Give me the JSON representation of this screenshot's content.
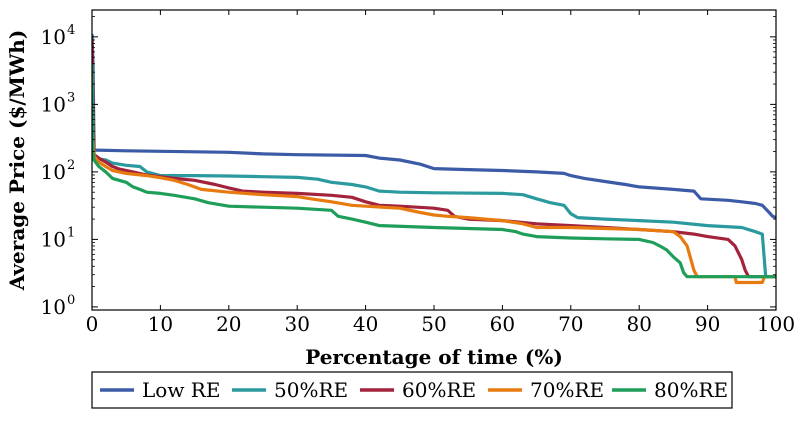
{
  "chart_data": {
    "type": "line",
    "xlabel": "Percentage of time (%)",
    "ylabel": "Average Price ($/MWh)",
    "xlim": [
      0,
      100
    ],
    "ylim": [
      0.9,
      25000
    ],
    "yscale": "log",
    "grid": false,
    "legend_position": "bottom",
    "x_ticks": [
      0,
      10,
      20,
      30,
      40,
      50,
      60,
      70,
      80,
      90,
      100
    ],
    "y_ticks": [
      {
        "value": 1,
        "mantissa": "10",
        "exponent": "0"
      },
      {
        "value": 10,
        "mantissa": "10",
        "exponent": "1"
      },
      {
        "value": 100,
        "mantissa": "10",
        "exponent": "2"
      },
      {
        "value": 1000,
        "mantissa": "10",
        "exponent": "3"
      },
      {
        "value": 10000,
        "mantissa": "10",
        "exponent": "4"
      }
    ],
    "series": [
      {
        "name": "Low RE",
        "color": "#3b5ba7",
        "points": [
          [
            0,
            11000
          ],
          [
            0.15,
            4000
          ],
          [
            0.3,
            215
          ],
          [
            0.6,
            210
          ],
          [
            5,
            205
          ],
          [
            20,
            195
          ],
          [
            25,
            185
          ],
          [
            30,
            180
          ],
          [
            40,
            175
          ],
          [
            42,
            160
          ],
          [
            45,
            150
          ],
          [
            48,
            130
          ],
          [
            50,
            112
          ],
          [
            55,
            108
          ],
          [
            60,
            105
          ],
          [
            65,
            100
          ],
          [
            69,
            95
          ],
          [
            70,
            88
          ],
          [
            72,
            80
          ],
          [
            75,
            72
          ],
          [
            78,
            65
          ],
          [
            80,
            60
          ],
          [
            85,
            55
          ],
          [
            88,
            52
          ],
          [
            89,
            40
          ],
          [
            93,
            38
          ],
          [
            95,
            36
          ],
          [
            97,
            34
          ],
          [
            98,
            32
          ],
          [
            99,
            25
          ],
          [
            99.5,
            22
          ],
          [
            100,
            21
          ]
        ]
      },
      {
        "name": "50%RE",
        "color": "#2a9a9e",
        "points": [
          [
            0,
            200
          ],
          [
            0.3,
            160
          ],
          [
            1,
            155
          ],
          [
            2,
            150
          ],
          [
            3,
            135
          ],
          [
            5,
            125
          ],
          [
            7,
            120
          ],
          [
            8,
            100
          ],
          [
            10,
            88
          ],
          [
            15,
            88
          ],
          [
            20,
            87
          ],
          [
            25,
            85
          ],
          [
            30,
            83
          ],
          [
            33,
            78
          ],
          [
            35,
            70
          ],
          [
            38,
            65
          ],
          [
            40,
            60
          ],
          [
            42,
            52
          ],
          [
            45,
            50
          ],
          [
            50,
            49
          ],
          [
            60,
            48
          ],
          [
            63,
            46
          ],
          [
            65,
            40
          ],
          [
            67,
            35
          ],
          [
            69,
            32
          ],
          [
            70,
            24
          ],
          [
            71,
            21
          ],
          [
            75,
            20
          ],
          [
            80,
            19
          ],
          [
            85,
            18
          ],
          [
            90,
            16
          ],
          [
            95,
            15
          ],
          [
            97,
            13
          ],
          [
            98,
            12
          ],
          [
            98.5,
            2.8
          ],
          [
            100,
            2.8
          ]
        ]
      },
      {
        "name": "60%RE",
        "color": "#a3233c",
        "points": [
          [
            0,
            9000
          ],
          [
            0.15,
            500
          ],
          [
            0.3,
            180
          ],
          [
            1,
            160
          ],
          [
            2,
            140
          ],
          [
            3,
            120
          ],
          [
            4,
            110
          ],
          [
            6,
            100
          ],
          [
            8,
            90
          ],
          [
            10,
            85
          ],
          [
            12,
            80
          ],
          [
            15,
            75
          ],
          [
            18,
            65
          ],
          [
            20,
            58
          ],
          [
            22,
            52
          ],
          [
            25,
            50
          ],
          [
            30,
            48
          ],
          [
            35,
            45
          ],
          [
            38,
            42
          ],
          [
            40,
            36
          ],
          [
            42,
            32
          ],
          [
            45,
            31
          ],
          [
            50,
            29
          ],
          [
            52,
            27
          ],
          [
            53,
            22
          ],
          [
            55,
            20
          ],
          [
            60,
            19
          ],
          [
            65,
            17
          ],
          [
            70,
            16
          ],
          [
            75,
            15
          ],
          [
            80,
            14
          ],
          [
            85,
            13
          ],
          [
            88,
            12
          ],
          [
            90,
            11
          ],
          [
            93,
            10
          ],
          [
            94,
            8
          ],
          [
            95,
            5
          ],
          [
            95.5,
            3.5
          ],
          [
            96,
            2.8
          ],
          [
            100,
            2.8
          ]
        ]
      },
      {
        "name": "70%RE",
        "color": "#e87b10",
        "points": [
          [
            0,
            3000
          ],
          [
            0.15,
            300
          ],
          [
            0.3,
            170
          ],
          [
            1,
            140
          ],
          [
            2,
            120
          ],
          [
            3,
            105
          ],
          [
            5,
            95
          ],
          [
            8,
            88
          ],
          [
            10,
            82
          ],
          [
            12,
            75
          ],
          [
            14,
            65
          ],
          [
            16,
            55
          ],
          [
            20,
            50
          ],
          [
            25,
            46
          ],
          [
            30,
            43
          ],
          [
            32,
            40
          ],
          [
            35,
            36
          ],
          [
            38,
            32
          ],
          [
            40,
            31
          ],
          [
            45,
            29
          ],
          [
            48,
            25
          ],
          [
            50,
            23
          ],
          [
            52,
            22
          ],
          [
            55,
            21
          ],
          [
            60,
            19
          ],
          [
            63,
            17
          ],
          [
            65,
            15
          ],
          [
            70,
            15
          ],
          [
            75,
            14.5
          ],
          [
            80,
            14
          ],
          [
            85,
            13
          ],
          [
            86,
            11
          ],
          [
            87,
            8
          ],
          [
            88,
            3.5
          ],
          [
            88.5,
            2.8
          ],
          [
            89,
            2.8
          ],
          [
            94,
            2.8
          ],
          [
            94.2,
            2.3
          ],
          [
            98,
            2.3
          ],
          [
            98.3,
            2.8
          ],
          [
            100,
            2.8
          ]
        ]
      },
      {
        "name": "80%RE",
        "color": "#1f9e5a",
        "points": [
          [
            0,
            4000
          ],
          [
            0.15,
            200
          ],
          [
            0.3,
            150
          ],
          [
            1,
            120
          ],
          [
            2,
            100
          ],
          [
            3,
            80
          ],
          [
            5,
            70
          ],
          [
            6,
            60
          ],
          [
            7,
            55
          ],
          [
            8,
            50
          ],
          [
            10,
            48
          ],
          [
            12,
            45
          ],
          [
            15,
            40
          ],
          [
            17,
            35
          ],
          [
            20,
            31
          ],
          [
            25,
            30
          ],
          [
            30,
            29
          ],
          [
            35,
            27
          ],
          [
            36,
            22
          ],
          [
            38,
            20
          ],
          [
            40,
            18
          ],
          [
            42,
            16
          ],
          [
            50,
            15
          ],
          [
            55,
            14.5
          ],
          [
            60,
            14
          ],
          [
            62,
            13
          ],
          [
            63,
            12
          ],
          [
            65,
            11
          ],
          [
            70,
            10.5
          ],
          [
            75,
            10.2
          ],
          [
            80,
            10
          ],
          [
            82,
            9
          ],
          [
            83,
            8
          ],
          [
            84,
            7
          ],
          [
            85,
            5.5
          ],
          [
            86,
            4.5
          ],
          [
            86.5,
            3.2
          ],
          [
            87,
            2.8
          ],
          [
            100,
            2.8
          ]
        ]
      }
    ]
  }
}
